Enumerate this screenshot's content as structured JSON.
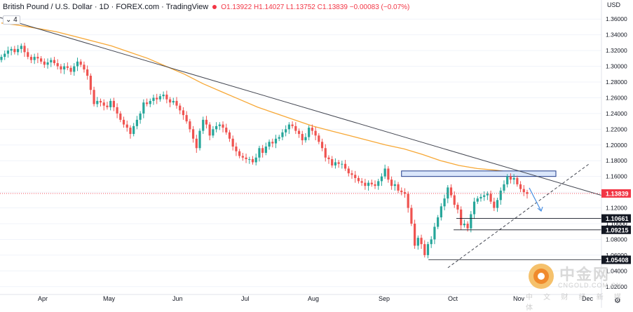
{
  "header": {
    "symbol": "British Pound / U.S. Dollar · 1D · FOREX.com · TradingView",
    "open": "O1.13922",
    "high": "H1.14027",
    "low": "L1.13752",
    "close": "C1.13839",
    "change": "−0.00083 (−0.07%)"
  },
  "indicator_badge": "4",
  "currency": "USD",
  "watermark": {
    "name": "中金网",
    "url": "CNGOLD.COM.CN",
    "tagline": "中 文 财 经 新 媒 体"
  },
  "colors": {
    "up": "#26a69a",
    "down": "#ef5350",
    "ma": "#f7a836",
    "trendline": "#434651",
    "zone_fill": "#dbe7fb",
    "zone_border": "#1e3a8a",
    "price_label": "#f23645",
    "level_label": "#131722",
    "projection": "#4a90e2"
  },
  "chart_data": {
    "type": "candlestick",
    "ylim": [
      1.01,
      1.37
    ],
    "y_ticks": [
      "1.36000",
      "1.34000",
      "1.32000",
      "1.30000",
      "1.28000",
      "1.26000",
      "1.24000",
      "1.22000",
      "1.20000",
      "1.18000",
      "1.16000",
      "1.14000",
      "1.12000",
      "1.10000",
      "1.08000",
      "1.06000",
      "1.04000",
      "1.02000"
    ],
    "x_labels": [
      "Apr",
      "May",
      "Jun",
      "Jul",
      "Aug",
      "Sep",
      "Oct",
      "Nov",
      "Dec"
    ],
    "last_price": "1.13839",
    "levels": [
      {
        "label": "1.10661",
        "value": 1.10661
      },
      {
        "label": "1.09215",
        "value": 1.09215
      },
      {
        "label": "1.05408",
        "value": 1.05408
      }
    ],
    "resistance_zone": [
      1.16,
      1.167
    ],
    "downtrend_line": {
      "from": 1.362,
      "to": 1.136
    },
    "uptrend_line": {
      "from": 1.044,
      "to": 1.177
    },
    "series_close": [
      1.312,
      1.316,
      1.32,
      1.322,
      1.318,
      1.322,
      1.326,
      1.318,
      1.312,
      1.308,
      1.312,
      1.31,
      1.306,
      1.302,
      1.305,
      1.308,
      1.304,
      1.3,
      1.296,
      1.3,
      1.298,
      1.293,
      1.3,
      1.306,
      1.302,
      1.296,
      1.288,
      1.27,
      1.252,
      1.256,
      1.254,
      1.25,
      1.248,
      1.256,
      1.248,
      1.24,
      1.232,
      1.226,
      1.222,
      1.214,
      1.224,
      1.232,
      1.24,
      1.254,
      1.252,
      1.256,
      1.26,
      1.258,
      1.262,
      1.264,
      1.258,
      1.254,
      1.256,
      1.25,
      1.244,
      1.238,
      1.23,
      1.22,
      1.208,
      1.196,
      1.218,
      1.232,
      1.226,
      1.212,
      1.22,
      1.224,
      1.226,
      1.222,
      1.216,
      1.208,
      1.198,
      1.192,
      1.186,
      1.184,
      1.182,
      1.182,
      1.178,
      1.184,
      1.196,
      1.19,
      1.198,
      1.204,
      1.202,
      1.208,
      1.21,
      1.216,
      1.22,
      1.226,
      1.224,
      1.218,
      1.214,
      1.206,
      1.21,
      1.222,
      1.218,
      1.212,
      1.204,
      1.196,
      1.184,
      1.182,
      1.174,
      1.178,
      1.176,
      1.176,
      1.17,
      1.164,
      1.162,
      1.158,
      1.154,
      1.152,
      1.148,
      1.152,
      1.15,
      1.148,
      1.154,
      1.16,
      1.17,
      1.156,
      1.148,
      1.15,
      1.142,
      1.14,
      1.138,
      1.12,
      1.1,
      1.072,
      1.082,
      1.074,
      1.06,
      1.074,
      1.08,
      1.096,
      1.108,
      1.122,
      1.132,
      1.146,
      1.136,
      1.124,
      1.118,
      1.098,
      1.1,
      1.094,
      1.112,
      1.128,
      1.132,
      1.134,
      1.136,
      1.138,
      1.128,
      1.12,
      1.13,
      1.142,
      1.15,
      1.16,
      1.156,
      1.158,
      1.15,
      1.144,
      1.14,
      1.138
    ],
    "ma_series": [
      1.355,
      1.352,
      1.348,
      1.344,
      1.338,
      1.332,
      1.326,
      1.318,
      1.31,
      1.3,
      1.29,
      1.278,
      1.268,
      1.258,
      1.248,
      1.24,
      1.232,
      1.224,
      1.218,
      1.212,
      1.206,
      1.2,
      1.195,
      1.188,
      1.18,
      1.174,
      1.17,
      1.168,
      1.165
    ],
    "ma_x_domain": [
      0,
      155
    ]
  }
}
